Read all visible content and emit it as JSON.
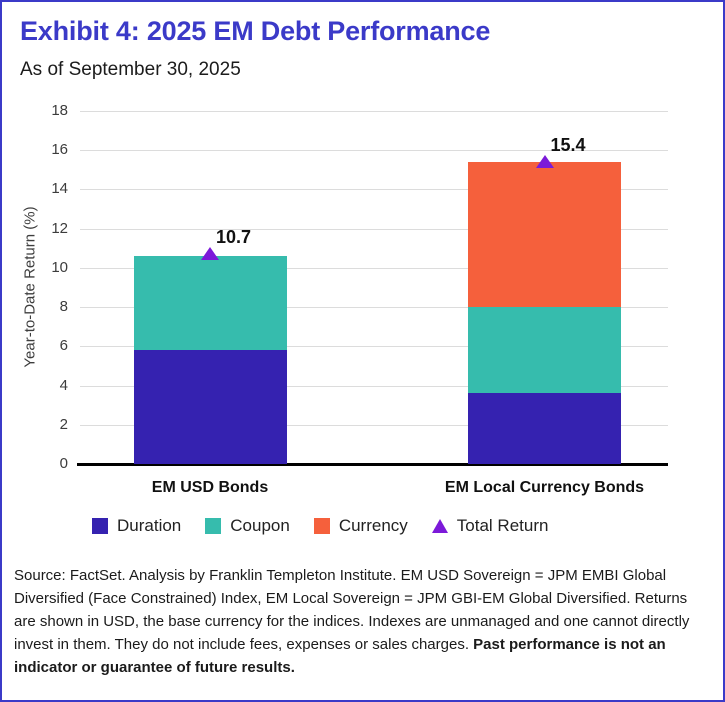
{
  "header": {
    "title": "Exhibit 4: 2025 EM Debt Performance",
    "subtitle": "As of September 30, 2025"
  },
  "colors": {
    "accent": "#3B3AC8",
    "duration": "#3522B0",
    "coupon": "#36BCAD",
    "currency": "#F5603C",
    "total_return": "#7C1AD9",
    "grid": "#DCDCDC",
    "axis": "#000000"
  },
  "chart_data": {
    "type": "bar",
    "stacked": true,
    "title": "Exhibit 4: 2025 EM Debt Performance",
    "subtitle": "As of September 30, 2025",
    "categories": [
      "EM USD Bonds",
      "EM Local Currency Bonds"
    ],
    "series": [
      {
        "name": "Duration",
        "color_key": "duration",
        "values": [
          5.8,
          3.6
        ]
      },
      {
        "name": "Coupon",
        "color_key": "coupon",
        "values": [
          4.8,
          4.4
        ]
      },
      {
        "name": "Currency",
        "color_key": "currency",
        "values": [
          0,
          7.4
        ]
      }
    ],
    "markers": {
      "name": "Total Return",
      "shape": "triangle-up",
      "color_key": "total_return",
      "values": [
        10.7,
        15.4
      ],
      "labels": [
        "10.7",
        "15.4"
      ]
    },
    "xlabel": "",
    "ylabel": "Year-to-Date Return (%)",
    "ylim": [
      0,
      18
    ],
    "yticks": [
      0,
      2,
      4,
      6,
      8,
      10,
      12,
      14,
      16,
      18
    ],
    "grid": true,
    "legend_position": "bottom"
  },
  "legend": {
    "items": [
      {
        "label": "Duration",
        "swatch": "square",
        "color_key": "duration"
      },
      {
        "label": "Coupon",
        "swatch": "square",
        "color_key": "coupon"
      },
      {
        "label": "Currency",
        "swatch": "square",
        "color_key": "currency"
      },
      {
        "label": "Total Return",
        "swatch": "triangle",
        "color_key": "total_return"
      }
    ]
  },
  "footer": {
    "text": "Source: FactSet. Analysis by Franklin Templeton Institute. EM USD Sovereign = JPM EMBI Global Diversified (Face Constrained) Index, EM Local Sovereign = JPM GBI-EM Global Diversified. Returns are shown in USD, the base currency for the indices. Indexes are unmanaged and one cannot directly invest in them. They do not include fees, expenses or sales charges. ",
    "bold": "Past performance is not an indicator or guarantee of future results."
  }
}
